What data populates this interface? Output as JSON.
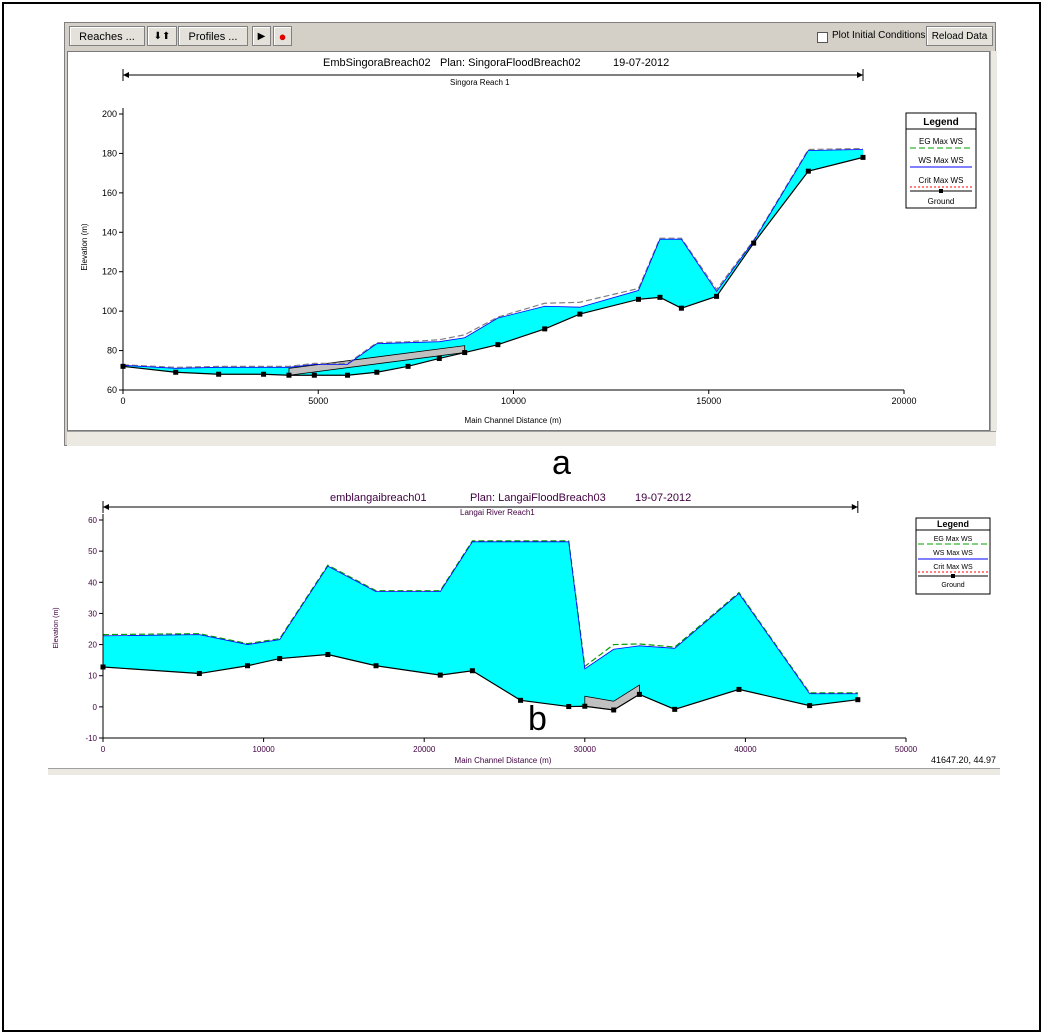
{
  "panel_a": {
    "toolbar": {
      "reaches_label": "Reaches ...",
      "updown_label": "⬇⬆",
      "profiles_label": "Profiles ...",
      "play_label": "▶",
      "record_label": "●",
      "plot_initial_label": "Plot Initial Conditions",
      "reload_label": "Reload Data"
    },
    "header": {
      "geometry": "EmbSingoraBreach02",
      "plan": "Plan: SingoraFloodBreach02",
      "date": "19-07-2012"
    },
    "reach_label": "Singora Reach 1",
    "caption": "a"
  },
  "panel_b": {
    "header": {
      "geometry": "emblangaibreach01",
      "plan": "Plan: LangaiFloodBreach03",
      "date": "19-07-2012"
    },
    "reach_label": "Langai River Reach1",
    "coord_readout": "41647.20, 44.97",
    "caption": "b"
  },
  "colors": {
    "water": "#00ffff",
    "breach": "#c0c0c0",
    "ground": "#000000",
    "eg": "#00a000",
    "ws": "#0000ff",
    "crit": "#ff0000"
  },
  "chart_data": [
    {
      "type": "area",
      "title": "EmbSingoraBreach02    Plan: SingoraFloodBreach02    19-07-2012",
      "xlabel": "Main Channel Distance (m)",
      "ylabel": "Elevation (m)",
      "xlim": [
        0,
        20000
      ],
      "ylim": [
        60,
        200
      ],
      "xticks": [
        0,
        5000,
        10000,
        15000,
        20000
      ],
      "yticks": [
        60,
        80,
        100,
        120,
        140,
        160,
        180,
        200
      ],
      "grid": false,
      "legend_title": "Legend",
      "legend_position": "top-right",
      "legend": [
        "EG  Max WS",
        "WS  Max WS",
        "Crit  Max WS",
        "Ground"
      ],
      "series": [
        {
          "name": "Ground",
          "x": [
            0,
            1350,
            2450,
            3600,
            4250,
            4900,
            5750,
            6500,
            7300,
            8100,
            8750,
            9600,
            10800,
            11700,
            13200,
            13750,
            14300,
            15200,
            16150,
            17550,
            18950
          ],
          "y": [
            72,
            69,
            68,
            68,
            67.5,
            67.5,
            67.5,
            69,
            72,
            76,
            79,
            83,
            91,
            98.5,
            106,
            107,
            101.5,
            107.5,
            134.5,
            171,
            178
          ]
        },
        {
          "name": "WS  Max WS",
          "x": [
            0,
            1350,
            2450,
            3600,
            4250,
            4900,
            5750,
            6500,
            7300,
            8100,
            8750,
            9600,
            10800,
            11700,
            13200,
            13750,
            14300,
            15200,
            16150,
            17550,
            18950
          ],
          "y": [
            72.5,
            71,
            71.5,
            71.5,
            71.5,
            73,
            73,
            83.5,
            84,
            84.5,
            86.5,
            96.5,
            102.5,
            102,
            110.5,
            136.5,
            136.5,
            110,
            135.5,
            181.5,
            182
          ]
        },
        {
          "name": "EG  Max WS",
          "x": [
            0,
            1350,
            2450,
            3600,
            4250,
            4900,
            5750,
            6500,
            7300,
            8100,
            8750,
            9600,
            10800,
            11700,
            13200,
            13750,
            14300,
            15200,
            16150,
            17550,
            18950
          ],
          "y": [
            72.8,
            71.5,
            72,
            72,
            72,
            73.5,
            73.5,
            84,
            84.5,
            85.5,
            88,
            97,
            104,
            104.5,
            111.5,
            137,
            137,
            111,
            136,
            182,
            182.5
          ]
        }
      ],
      "breach_polygon": {
        "x": [
          4250,
          8750,
          8750,
          4250
        ],
        "y": [
          67.5,
          79,
          82.5,
          71
        ]
      }
    },
    {
      "type": "area",
      "title": "emblangaibreach01    Plan: LangaiFloodBreach03    19-07-2012",
      "xlabel": "Main Channel Distance (m)",
      "ylabel": "Elevation (m)",
      "xlim": [
        0,
        50000
      ],
      "ylim": [
        -10,
        60
      ],
      "xticks": [
        0,
        10000,
        20000,
        30000,
        40000,
        50000
      ],
      "yticks": [
        -10,
        0,
        10,
        20,
        30,
        40,
        50,
        60
      ],
      "grid": false,
      "legend_title": "Legend",
      "legend_position": "top-right",
      "legend": [
        "EG  Max WS",
        "WS  Max WS",
        "Crit  Max WS",
        "Ground"
      ],
      "series": [
        {
          "name": "Ground",
          "x": [
            0,
            6000,
            9000,
            11000,
            14000,
            17000,
            21000,
            23000,
            26000,
            29000,
            30000,
            31800,
            33400,
            35600,
            39600,
            44000,
            47000
          ],
          "y": [
            12.8,
            10.7,
            13.2,
            15.5,
            16.8,
            13.2,
            10.2,
            11.6,
            2.1,
            0.1,
            0.2,
            -1,
            4,
            -0.8,
            5.6,
            0.4,
            2.3
          ]
        },
        {
          "name": "WS  Max WS",
          "x": [
            0,
            6000,
            9000,
            11000,
            14000,
            17000,
            21000,
            23000,
            26000,
            29000,
            30000,
            31800,
            33400,
            35600,
            39600,
            44000,
            47000
          ],
          "y": [
            22.8,
            23.2,
            20,
            21.6,
            45.2,
            37,
            37,
            53,
            53,
            53,
            12.2,
            18.5,
            19.6,
            18.8,
            36.4,
            4.2,
            4.2
          ]
        },
        {
          "name": "EG  Max WS",
          "x": [
            0,
            6000,
            9000,
            11000,
            14000,
            17000,
            21000,
            23000,
            26000,
            29000,
            30000,
            31800,
            33400,
            35600,
            39600,
            44000,
            47000
          ],
          "y": [
            23.2,
            23.5,
            20.3,
            21.9,
            45.5,
            37.3,
            37.3,
            53.3,
            53.3,
            53.3,
            13,
            20,
            20.2,
            19.2,
            36.7,
            4.5,
            4.5
          ]
        }
      ],
      "breach_polygon": {
        "x": [
          30000,
          31800,
          33400,
          33400,
          31800,
          30000
        ],
        "y": [
          0.2,
          -1,
          4,
          7,
          1.8,
          3.4
        ]
      }
    }
  ]
}
